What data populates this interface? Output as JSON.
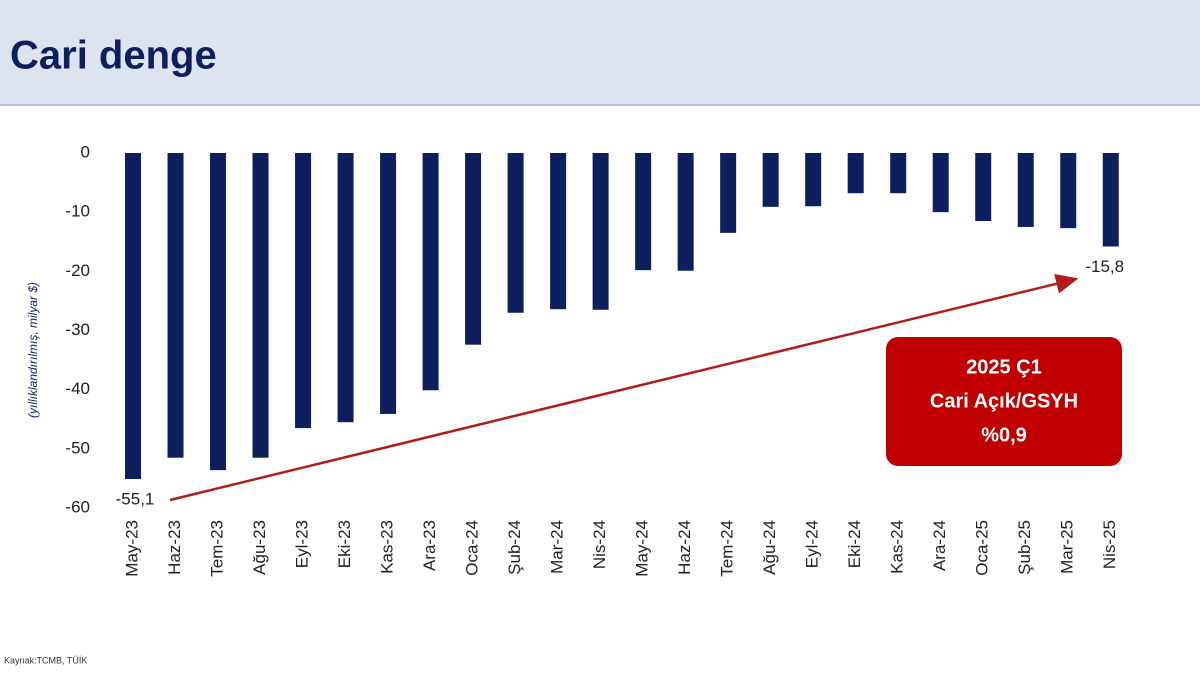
{
  "chart_data": {
    "type": "bar",
    "title": "Cari denge",
    "y_label": "(yıllıklandırılmış, milyar $)",
    "source": "Kaynak:TCMB, TÜİK",
    "callout": [
      "2025 Ç1",
      "Cari Açık/GSYH",
      "%0,9"
    ],
    "categories": [
      "May-23",
      "Haz-23",
      "Tem-23",
      "Ağu-23",
      "Eyl-23",
      "Eki-23",
      "Kas-23",
      "Ara-23",
      "Oca-24",
      "Şub-24",
      "Mar-24",
      "Nis-24",
      "May-24",
      "Haz-24",
      "Tem-24",
      "Ağu-24",
      "Eyl-24",
      "Eki-24",
      "Kas-24",
      "Ara-24",
      "Oca-25",
      "Şub-25",
      "Mar-25",
      "Nis-25"
    ],
    "values": [
      -55.1,
      -51.5,
      -53.6,
      -51.5,
      -46.5,
      -45.5,
      -44.1,
      -40.1,
      -32.4,
      -27.0,
      -26.4,
      -26.5,
      -19.8,
      -19.9,
      -13.5,
      -9.1,
      -9.0,
      -6.8,
      -6.8,
      -10.0,
      -11.5,
      -12.5,
      -12.7,
      -15.8
    ],
    "value_labels": [
      "-55,1",
      null,
      null,
      null,
      null,
      null,
      null,
      null,
      null,
      null,
      null,
      null,
      null,
      null,
      null,
      null,
      null,
      null,
      null,
      null,
      null,
      null,
      null,
      "-15,8"
    ],
    "color": "#0d1f5c",
    "ylim": [
      -60,
      0
    ],
    "yticks": [
      0,
      -10,
      -20,
      -30,
      -40,
      -50,
      -60
    ]
  }
}
